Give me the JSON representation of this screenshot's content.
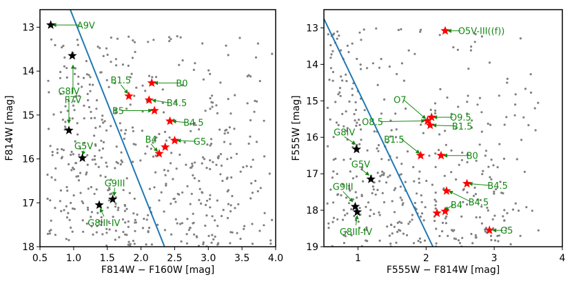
{
  "chart_data": [
    {
      "type": "scatter",
      "title": "",
      "xlabel": "F814W − F160W [mag]",
      "ylabel": "F814W [mag]",
      "xlim": [
        0.5,
        4.0
      ],
      "ylim": [
        18,
        12.6
      ],
      "y_inverted": true,
      "xticks": [
        0.5,
        1.0,
        1.5,
        2.0,
        2.5,
        3.0,
        3.5,
        4.0
      ],
      "xtick_labels": [
        "0.5",
        "1.0",
        "1.5",
        "2.0",
        "2.5",
        "3.0",
        "3.5",
        "4.0"
      ],
      "yticks": [
        13,
        14,
        15,
        16,
        17,
        18
      ],
      "ytick_labels": [
        "13",
        "14",
        "15",
        "16",
        "17",
        "18"
      ],
      "line": {
        "color": "#1f77b4",
        "points": [
          [
            0.95,
            12.6
          ],
          [
            2.35,
            18.0
          ]
        ]
      },
      "background_points": {
        "color": "#808080",
        "count": 520,
        "region_x": [
          0.6,
          3.95
        ],
        "region_y": [
          13.2,
          18.0
        ]
      },
      "red_stars": {
        "color": "#ff0000",
        "points": [
          {
            "x": 1.82,
            "y": 14.57
          },
          {
            "x": 2.16,
            "y": 14.27
          },
          {
            "x": 2.12,
            "y": 14.66
          },
          {
            "x": 2.2,
            "y": 14.9
          },
          {
            "x": 2.43,
            "y": 15.14
          },
          {
            "x": 2.5,
            "y": 15.58
          },
          {
            "x": 2.36,
            "y": 15.73
          },
          {
            "x": 2.27,
            "y": 15.88
          }
        ]
      },
      "black_stars": {
        "color": "#000000",
        "points": [
          {
            "x": 0.66,
            "y": 12.95
          },
          {
            "x": 0.98,
            "y": 13.65
          },
          {
            "x": 0.93,
            "y": 15.35
          },
          {
            "x": 1.13,
            "y": 15.98
          },
          {
            "x": 1.58,
            "y": 16.92
          },
          {
            "x": 1.38,
            "y": 17.05
          }
        ]
      },
      "annotations": [
        {
          "text": "A9V",
          "tx": 1.05,
          "ty": 12.95,
          "px": 0.68,
          "py": 12.95
        },
        {
          "text": "F7V",
          "tx": 0.99,
          "ty": 14.65,
          "px": 0.99,
          "py": 13.85
        },
        {
          "text": "G8IV",
          "tx": 0.93,
          "ty": 14.45,
          "px": 0.93,
          "py": 15.2
        },
        {
          "text": "G5V",
          "tx": 1.15,
          "ty": 15.7,
          "px": 1.13,
          "py": 15.92
        },
        {
          "text": "G9III",
          "tx": 1.61,
          "ty": 16.55,
          "px": 1.6,
          "py": 16.85
        },
        {
          "text": "G8III-IV",
          "tx": 1.45,
          "ty": 17.45,
          "px": 1.39,
          "py": 17.12
        },
        {
          "text": "B1.5",
          "tx": 1.7,
          "ty": 14.2,
          "px": 1.81,
          "py": 14.52
        },
        {
          "text": "B0",
          "tx": 2.52,
          "ty": 14.27,
          "px": 2.19,
          "py": 14.27
        },
        {
          "text": "B4.5",
          "tx": 2.38,
          "ty": 14.72,
          "px": 2.16,
          "py": 14.66
        },
        {
          "text": "B5",
          "tx": 1.75,
          "ty": 14.9,
          "px": 2.17,
          "py": 14.9
        },
        {
          "text": "B4.5",
          "tx": 2.63,
          "ty": 15.17,
          "px": 2.46,
          "py": 15.14
        },
        {
          "text": "B4",
          "tx": 2.15,
          "ty": 15.55,
          "px": 2.25,
          "py": 15.84
        },
        {
          "text": "G5",
          "tx": 2.78,
          "ty": 15.6,
          "px": 2.53,
          "py": 15.58
        }
      ]
    },
    {
      "type": "scatter",
      "title": "",
      "xlabel": "F555W − F814W [mag]",
      "ylabel": "F555W [mag]",
      "xlim": [
        0.5,
        4.0
      ],
      "ylim": [
        19,
        12.5
      ],
      "y_inverted": true,
      "xticks": [
        1,
        2,
        3,
        4
      ],
      "xtick_labels": [
        "1",
        "2",
        "3",
        "4"
      ],
      "yticks": [
        13,
        14,
        15,
        16,
        17,
        18,
        19
      ],
      "ytick_labels": [
        "13",
        "14",
        "15",
        "16",
        "17",
        "18",
        "19"
      ],
      "line": {
        "color": "#1f77b4",
        "points": [
          [
            0.5,
            12.75
          ],
          [
            2.1,
            19.0
          ]
        ]
      },
      "background_points": {
        "color": "#808080",
        "count": 420,
        "region_x": [
          0.55,
          3.65
        ],
        "region_y": [
          13.0,
          19.0
        ]
      },
      "red_stars": {
        "color": "#ff0000",
        "points": [
          {
            "x": 2.28,
            "y": 13.08
          },
          {
            "x": 2.08,
            "y": 15.45
          },
          {
            "x": 2.02,
            "y": 15.55
          },
          {
            "x": 2.06,
            "y": 15.67
          },
          {
            "x": 1.92,
            "y": 16.5
          },
          {
            "x": 2.22,
            "y": 16.5
          },
          {
            "x": 2.6,
            "y": 17.27
          },
          {
            "x": 2.3,
            "y": 17.47
          },
          {
            "x": 2.28,
            "y": 18.03
          },
          {
            "x": 2.16,
            "y": 18.08
          },
          {
            "x": 2.93,
            "y": 18.55
          }
        ]
      },
      "black_stars": {
        "color": "#000000",
        "points": [
          {
            "x": 0.98,
            "y": 16.33
          },
          {
            "x": 1.19,
            "y": 17.15
          },
          {
            "x": 0.96,
            "y": 17.9
          },
          {
            "x": 0.99,
            "y": 18.05
          }
        ]
      },
      "annotations": [
        {
          "text": "O5V-III((f))",
          "tx": 2.47,
          "ty": 13.08,
          "px": 2.31,
          "py": 13.08
        },
        {
          "text": "O7",
          "tx": 1.71,
          "ty": 14.97,
          "px": 2.0,
          "py": 15.5
        },
        {
          "text": "O9.5",
          "tx": 2.35,
          "ty": 15.45,
          "px": 2.1,
          "py": 15.45
        },
        {
          "text": "O8.5",
          "tx": 1.37,
          "ty": 15.57,
          "px": 1.99,
          "py": 15.55
        },
        {
          "text": "B1.5",
          "tx": 2.38,
          "ty": 15.69,
          "px": 2.09,
          "py": 15.67
        },
        {
          "text": "B1.5",
          "tx": 1.68,
          "ty": 16.05,
          "px": 1.91,
          "py": 16.45
        },
        {
          "text": "B0",
          "tx": 2.59,
          "ty": 16.5,
          "px": 2.25,
          "py": 16.5
        },
        {
          "text": "G8IV",
          "tx": 0.8,
          "ty": 15.85,
          "px": 0.97,
          "py": 16.2
        },
        {
          "text": "G5V",
          "tx": 1.04,
          "ty": 16.73,
          "px": 1.17,
          "py": 17.05
        },
        {
          "text": "B4.5",
          "tx": 2.9,
          "ty": 17.32,
          "px": 2.62,
          "py": 17.27
        },
        {
          "text": "B4.5",
          "tx": 2.62,
          "ty": 17.77,
          "px": 2.33,
          "py": 17.47
        },
        {
          "text": "G9III",
          "tx": 0.78,
          "ty": 17.35,
          "px": 0.93,
          "py": 17.78
        },
        {
          "text": "B4",
          "tx": 2.36,
          "ty": 17.85,
          "px": 2.27,
          "py": 18.0
        },
        {
          "text": "G8III-IV",
          "tx": 0.97,
          "ty": 18.58,
          "px": 0.99,
          "py": 18.13
        },
        {
          "text": "G5",
          "tx": 3.09,
          "ty": 18.55,
          "px": 2.97,
          "py": 18.55
        }
      ]
    }
  ]
}
